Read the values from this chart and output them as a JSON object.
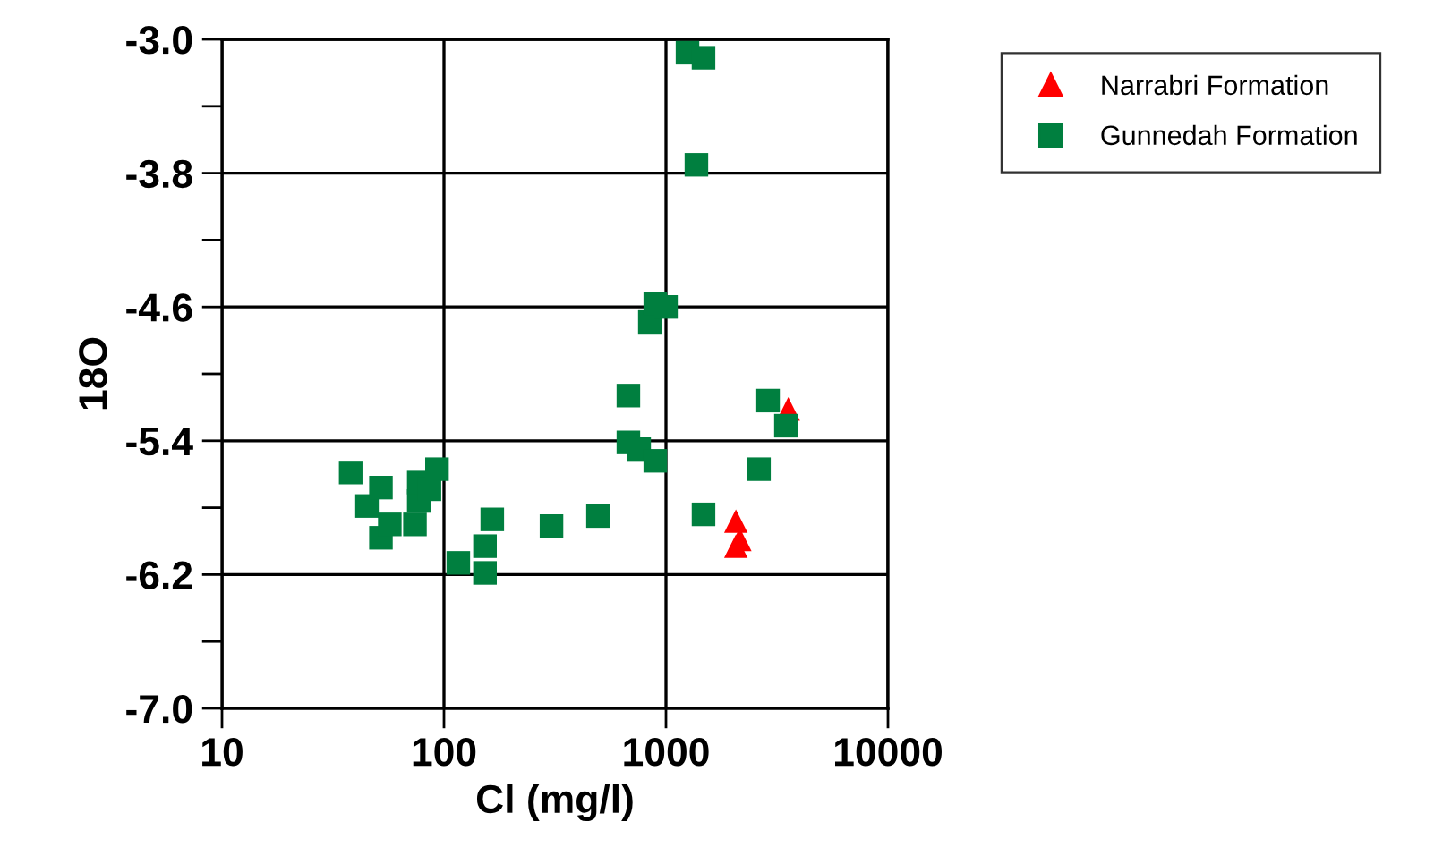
{
  "chart_data": {
    "type": "scatter",
    "xlabel": "Cl (mg/l)",
    "ylabel": "18O",
    "log": "x",
    "xlim": [
      10,
      10000
    ],
    "xticks": [
      10,
      100,
      1000,
      10000
    ],
    "ylim": [
      -7.0,
      -3.0
    ],
    "yticks": [
      {
        "value": -7.0,
        "label": "-7.0"
      },
      {
        "value": -6.6,
        "label": null
      },
      {
        "value": -6.2,
        "label": "-6.2"
      },
      {
        "value": -5.8,
        "label": null
      },
      {
        "value": -5.4,
        "label": "-5.4"
      },
      {
        "value": -5.0,
        "label": null
      },
      {
        "value": -4.6,
        "label": "-4.6"
      },
      {
        "value": -4.2,
        "label": null
      },
      {
        "value": -3.8,
        "label": "-3.8"
      },
      {
        "value": -3.4,
        "label": null
      },
      {
        "value": -3.0,
        "label": "-3.0"
      }
    ],
    "grid": true,
    "legend": "top right",
    "series": [
      {
        "name": "Narrabri Formation",
        "color": "#ff0000",
        "marker": "triangle",
        "x": [
          3555,
          2065,
          2150,
          2065
        ],
        "values": [
          -5.21,
          -5.88,
          -5.99,
          -6.03
        ]
      },
      {
        "name": "Gunnedah Formation",
        "color": "#007f3f",
        "marker": "square",
        "x": [
          38,
          45,
          52,
          52,
          59,
          69,
          77,
          77,
          86,
          93,
          67,
          57,
          74,
          116,
          153,
          153,
          165,
          305,
          494,
          677,
          677,
          757,
          895,
          846,
          895,
          1000,
          1250,
          1476,
          1371,
          1476,
          2624,
          2883,
          3470
        ],
        "values": [
          -5.59,
          -5.79,
          -5.68,
          -5.98,
          null,
          null,
          -5.76,
          -5.65,
          -5.69,
          -5.57,
          null,
          -5.9,
          -5.9,
          -6.13,
          -6.03,
          -6.19,
          -5.87,
          -5.91,
          -5.85,
          -5.13,
          -5.41,
          -5.45,
          -5.52,
          -4.69,
          -4.58,
          -4.6,
          -3.08,
          -3.11,
          -3.75,
          -5.84,
          -5.57,
          -5.16,
          -5.31
        ]
      }
    ]
  }
}
